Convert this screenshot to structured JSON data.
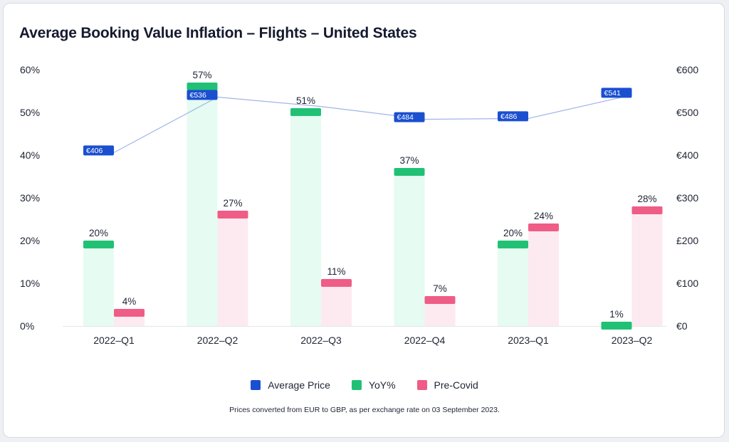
{
  "chart_data": {
    "type": "bar",
    "title": "Average Booking Value Inflation – Flights – United States",
    "categories": [
      "2022–Q1",
      "2022–Q2",
      "2022–Q3",
      "2022–Q4",
      "2023–Q1",
      "2023–Q2"
    ],
    "series": [
      {
        "name": "YoY%",
        "type": "bar",
        "axis": "left",
        "values": [
          20,
          57,
          51,
          37,
          20,
          1
        ],
        "labels": [
          "20%",
          "57%",
          "51%",
          "37%",
          "20%",
          "1%"
        ]
      },
      {
        "name": "Pre-Covid",
        "type": "bar",
        "axis": "left",
        "values": [
          4,
          27,
          11,
          7,
          24,
          28
        ],
        "labels": [
          "4%",
          "27%",
          "11%",
          "7%",
          "24%",
          "28%"
        ]
      },
      {
        "name": "Average Price",
        "type": "line",
        "axis": "right",
        "values": [
          406,
          536,
          514,
          484,
          486,
          541
        ],
        "labels": [
          "€406",
          "€536",
          "",
          "€484",
          "€486",
          "€541"
        ]
      }
    ],
    "y_left": {
      "ticks": [
        "0%",
        "10%",
        "20%",
        "30%",
        "40%",
        "50%",
        "60%"
      ],
      "range": [
        0,
        60
      ]
    },
    "y_right": {
      "ticks": [
        "€0",
        "€100",
        "£200",
        "€300",
        "€400",
        "€500",
        "€600"
      ],
      "range": [
        0,
        600
      ]
    },
    "legend_position": "bottom-center",
    "grid": false,
    "colors": {
      "yoy_cap": "#21c175",
      "yoy_fill": "#e6fbf1",
      "precovid_cap": "#ef5c86",
      "precovid_fill": "#fdeaf0",
      "price": "#1a4fd0",
      "price_line": "#9fb6e8"
    }
  },
  "legend": [
    {
      "label": "Average Price",
      "color": "#1a4fd0"
    },
    {
      "label": "YoY%",
      "color": "#21c175"
    },
    {
      "label": "Pre-Covid",
      "color": "#ef5c86"
    }
  ],
  "footnote": "Prices converted from EUR to GBP, as per exchange rate on 03 September 2023."
}
